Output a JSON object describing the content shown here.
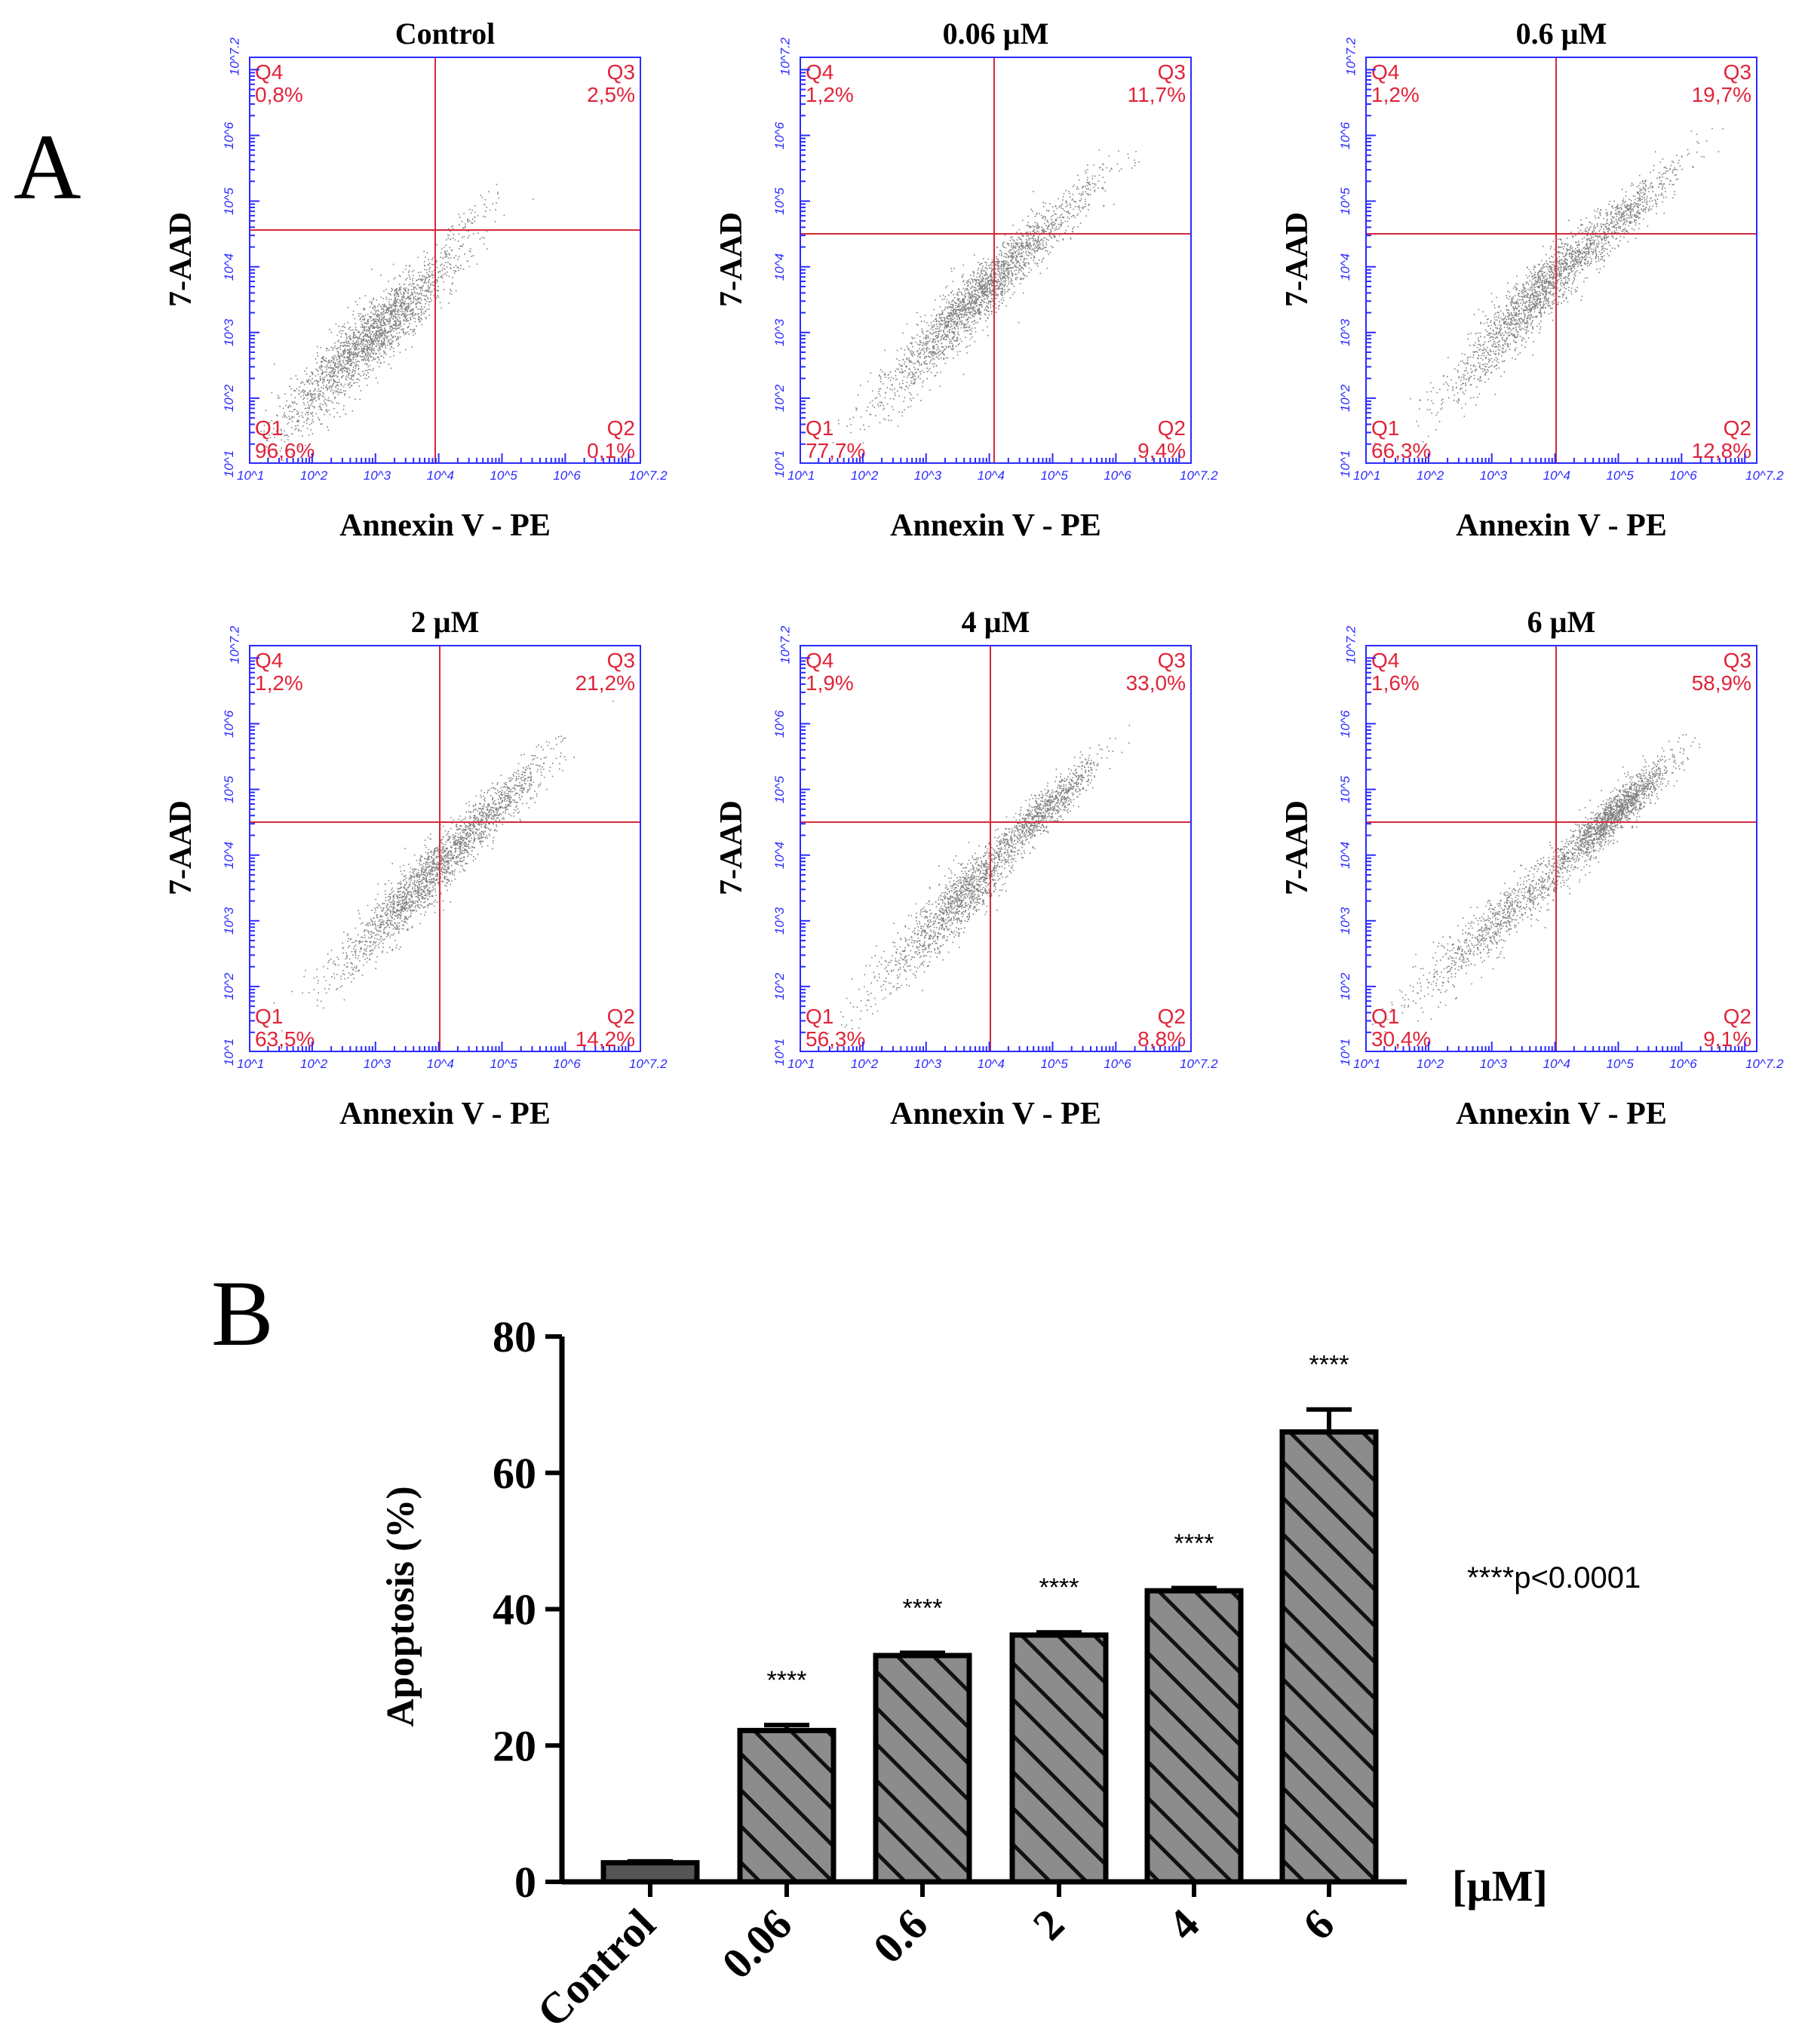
{
  "panel_labels": {
    "a": "A",
    "b": "B"
  },
  "colors": {
    "axis_blue": "#2b2bff",
    "quadrant_red": "#e0243a",
    "bar_fill": "#8c8c8c",
    "bar_stroke": "#000000"
  },
  "flow_axes": {
    "xlabel": "Annexin V - PE",
    "ylabel": "7-AAD",
    "tick_labels": [
      "10^1",
      "10^2",
      "10^3",
      "10^4",
      "10^5",
      "10^6",
      "10^7.2"
    ]
  },
  "flow_panels": [
    {
      "title": "Control",
      "q1": "Q1",
      "q1v": "96,6%",
      "q2": "Q2",
      "q2v": "0,1%",
      "q3": "Q3",
      "q3v": "2,5%",
      "q4": "Q4",
      "q4v": "0,8%"
    },
    {
      "title": "0.06 µM",
      "q1": "Q1",
      "q1v": "77,7%",
      "q2": "Q2",
      "q2v": "9,4%",
      "q3": "Q3",
      "q3v": "11,7%",
      "q4": "Q4",
      "q4v": "1,2%"
    },
    {
      "title": "0.6 µM",
      "q1": "Q1",
      "q1v": "66,3%",
      "q2": "Q2",
      "q2v": "12,8%",
      "q3": "Q3",
      "q3v": "19,7%",
      "q4": "Q4",
      "q4v": "1,2%"
    },
    {
      "title": "2 µM",
      "q1": "Q1",
      "q1v": "63,5%",
      "q2": "Q2",
      "q2v": "14,2%",
      "q3": "Q3",
      "q3v": "21,2%",
      "q4": "Q4",
      "q4v": "1,2%"
    },
    {
      "title": "4 µM",
      "q1": "Q1",
      "q1v": "56,3%",
      "q2": "Q2",
      "q2v": "8,8%",
      "q3": "Q3",
      "q3v": "33,0%",
      "q4": "Q4",
      "q4v": "1,9%"
    },
    {
      "title": "6 µM",
      "q1": "Q1",
      "q1v": "30,4%",
      "q2": "Q2",
      "q2v": "9,1%",
      "q3": "Q3",
      "q3v": "58,9%",
      "q4": "Q4",
      "q4v": "1,6%"
    }
  ],
  "chart_data": {
    "type": "bar",
    "title": "",
    "xlabel": "[µM]",
    "ylabel": "Apoptosis (%)",
    "ylim": [
      0,
      80
    ],
    "yticks": [
      "0",
      "20",
      "40",
      "60",
      "80"
    ],
    "categories": [
      "Control",
      "0.06",
      "0.6",
      "2",
      "4",
      "6"
    ],
    "values": [
      2.8,
      22.2,
      33.2,
      36.2,
      42.7,
      66.0
    ],
    "errors": [
      0.2,
      0.8,
      0.4,
      0.4,
      0.4,
      3.3
    ],
    "significance": [
      "",
      "****",
      "****",
      "****",
      "****",
      "****"
    ],
    "annotation": "****p<0.0001"
  }
}
